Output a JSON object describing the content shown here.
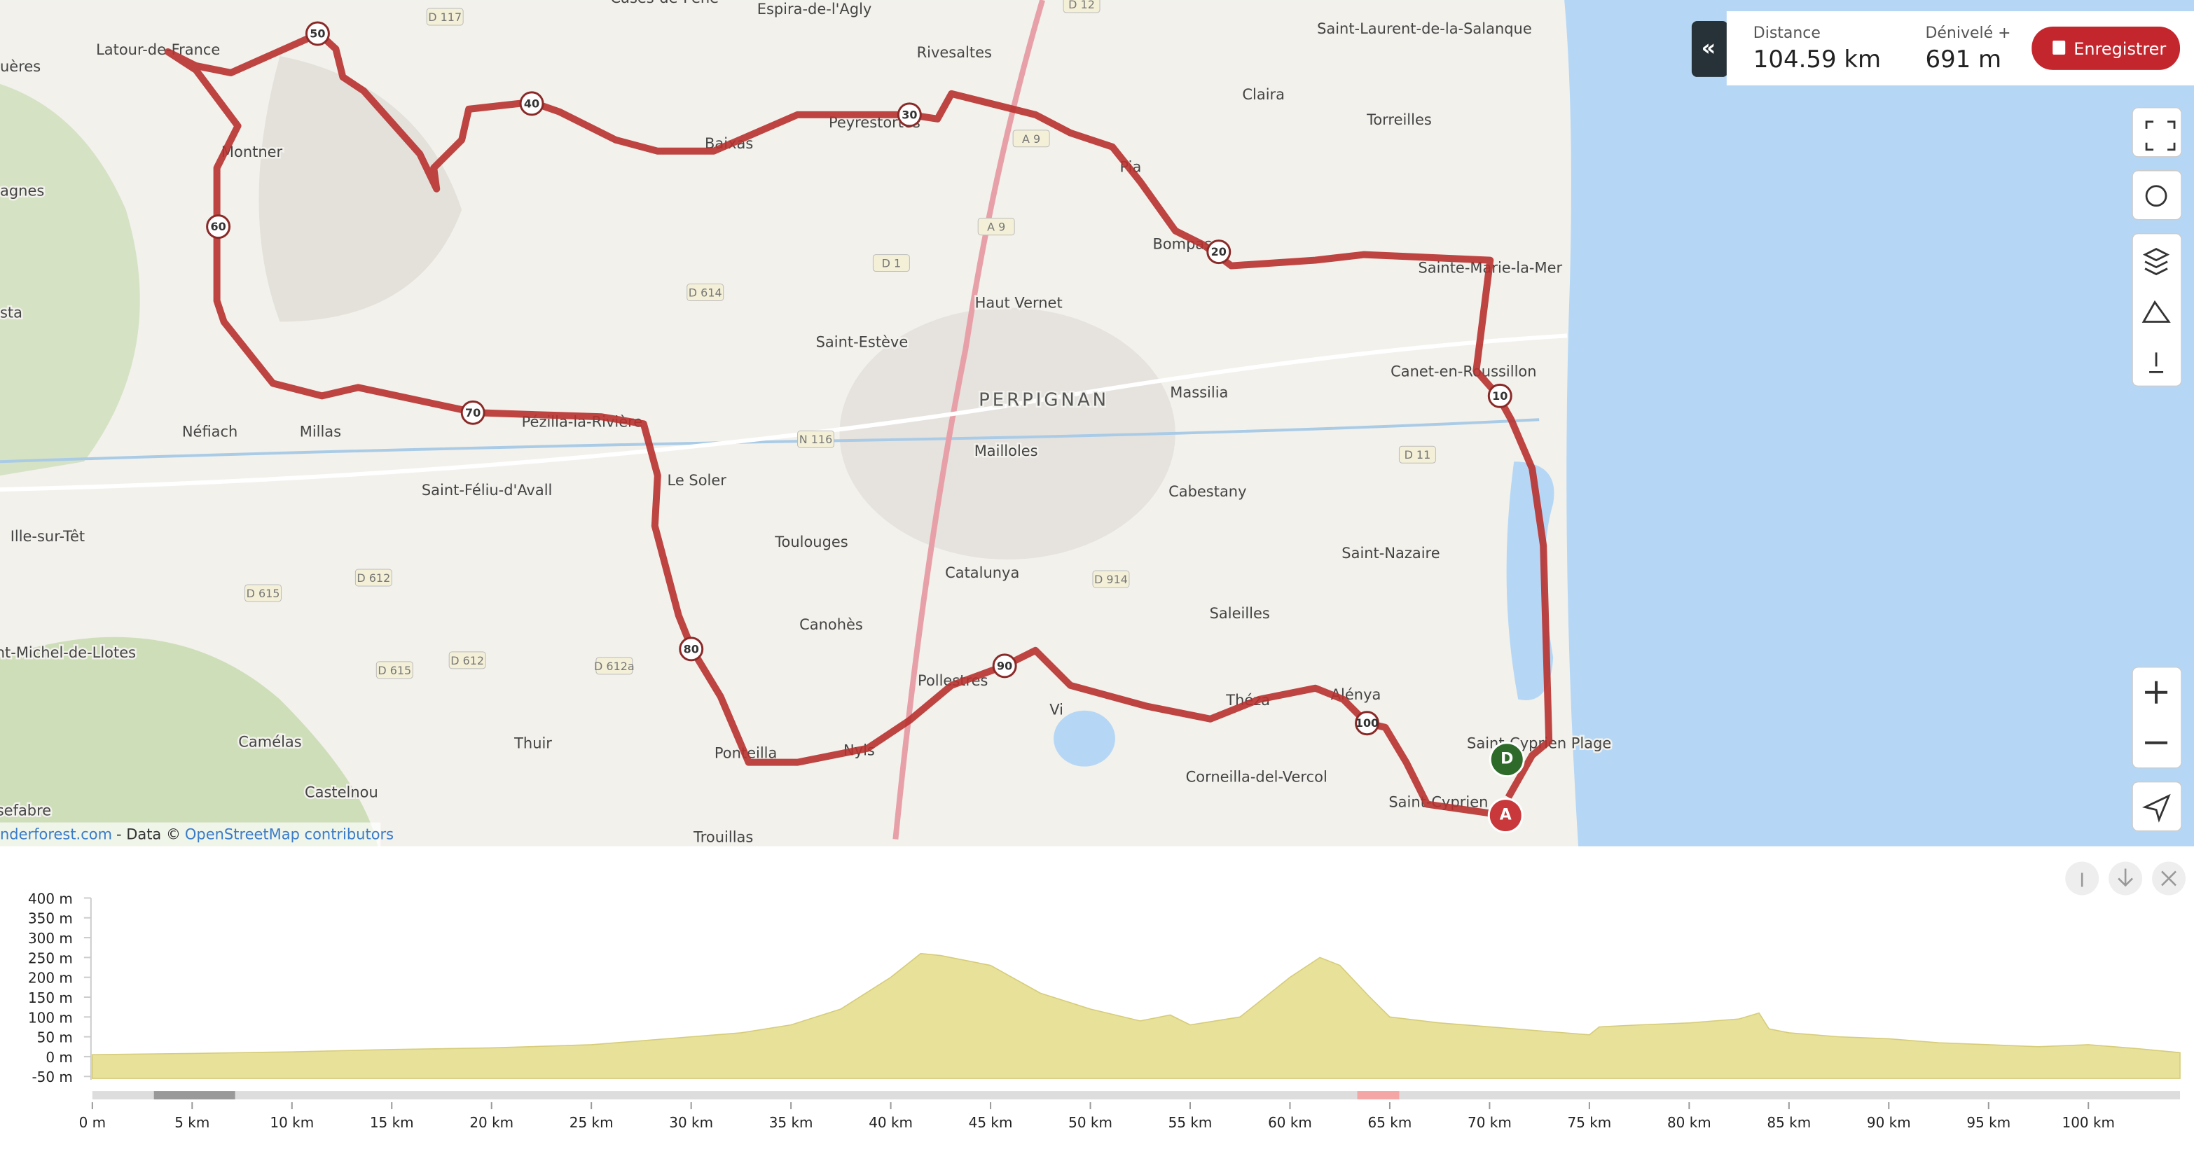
{
  "map": {
    "places": [
      "Latour-de-France",
      "uères",
      "Montner",
      "agnes",
      "sta",
      "Néfiach",
      "Millas",
      "Saint-Féliu-d'Avall",
      "Ille-sur-Têt",
      "nt-Michel-de-Llotes",
      "Camélas",
      "Castelnou",
      "sefabre",
      "Thuir",
      "Pézilla-la-Rivière",
      "Le Soler",
      "Toulouges",
      "Canohès",
      "Ponteilla",
      "Nyls",
      "Pollestres",
      "Trouillas",
      "Vi",
      "Corneilla-del-Vercol",
      "Théza",
      "Alénya",
      "Saint-Cyprien",
      "Saint-Cyprien Plage",
      "Saint-Nazaire",
      "Saleilles",
      "Cabestany",
      "Catalunya",
      "Mailloles",
      "PERPIGNAN",
      "Massilia",
      "Saint-Estève",
      "Haut Vernet",
      "Baixas",
      "Peyrestortes",
      "Rivesaltes",
      "Espira-de-l'Agly",
      "Pia",
      "Bompas",
      "Claira",
      "Torreilles",
      "Saint-Laurent-de-la-Salanque",
      "Sainte-Marie-la-Mer",
      "Canet-en-Roussillon",
      "Cases-de-Pène"
    ],
    "roads": [
      "D 117",
      "D 12",
      "A 9",
      "A 9",
      "D 1",
      "D 614",
      "N 116",
      "D 612",
      "D 612",
      "D 615",
      "D 615",
      "D 612a",
      "D 914",
      "D 11"
    ],
    "km_markers": [
      "10",
      "20",
      "30",
      "40",
      "50",
      "60",
      "70",
      "80",
      "90",
      "100"
    ],
    "start_marker": "D",
    "end_marker": "A",
    "attribution": {
      "prefix": "nderforest.com",
      "middle": "- Data ©",
      "link": "OpenStreetMap contributors"
    }
  },
  "summary": {
    "distance_label": "Distance",
    "distance": "104.59 km",
    "elevation_label": "Dénivelé +",
    "elevation": "691 m",
    "save_button": "Enregistrer",
    "collapse": "«"
  },
  "elevation_profile": {
    "type": "area",
    "color": "#e8e19a",
    "xlim": [
      0,
      104.59
    ],
    "ylim": [
      -55,
      400
    ],
    "yticks": [
      {
        "value": 400,
        "label": "400 m"
      },
      {
        "value": 350,
        "label": "350 m"
      },
      {
        "value": 300,
        "label": "300 m"
      },
      {
        "value": 250,
        "label": "250 m"
      },
      {
        "value": 200,
        "label": "200 m"
      },
      {
        "value": 150,
        "label": "150 m"
      },
      {
        "value": 100,
        "label": "100 m"
      },
      {
        "value": 50,
        "label": "50 m"
      },
      {
        "value": 0,
        "label": "0 m"
      },
      {
        "value": -50,
        "label": "-50 m"
      }
    ],
    "xticks": [
      {
        "value": 0,
        "label": "0 m"
      },
      {
        "value": 5,
        "label": "5 km"
      },
      {
        "value": 10,
        "label": "10 km"
      },
      {
        "value": 15,
        "label": "15 km"
      },
      {
        "value": 20,
        "label": "20 km"
      },
      {
        "value": 25,
        "label": "25 km"
      },
      {
        "value": 30,
        "label": "30 km"
      },
      {
        "value": 35,
        "label": "35 km"
      },
      {
        "value": 40,
        "label": "40 km"
      },
      {
        "value": 45,
        "label": "45 km"
      },
      {
        "value": 50,
        "label": "50 km"
      },
      {
        "value": 55,
        "label": "55 km"
      },
      {
        "value": 60,
        "label": "60 km"
      },
      {
        "value": 65,
        "label": "65 km"
      },
      {
        "value": 70,
        "label": "70 km"
      },
      {
        "value": 75,
        "label": "75 km"
      },
      {
        "value": 80,
        "label": "80 km"
      },
      {
        "value": 85,
        "label": "85 km"
      },
      {
        "value": 90,
        "label": "90 km"
      },
      {
        "value": 95,
        "label": "95 km"
      },
      {
        "value": 100,
        "label": "100 km"
      }
    ],
    "x": [
      0,
      5,
      10,
      15,
      20,
      25,
      30,
      32.5,
      35,
      37.5,
      40,
      41.5,
      42.5,
      45,
      47.5,
      50,
      52.5,
      54,
      55,
      57.5,
      60,
      61.5,
      62.5,
      64,
      65,
      67.5,
      70,
      72.5,
      75,
      75.5,
      77.5,
      80,
      82.5,
      83.5,
      84,
      85,
      87.5,
      90,
      92.5,
      95,
      97.5,
      100,
      102.5,
      104.59
    ],
    "values": [
      5,
      8,
      12,
      18,
      22,
      30,
      50,
      60,
      80,
      120,
      200,
      260,
      255,
      230,
      160,
      120,
      90,
      105,
      80,
      100,
      200,
      250,
      230,
      150,
      100,
      85,
      75,
      65,
      55,
      75,
      80,
      85,
      95,
      110,
      70,
      60,
      50,
      45,
      35,
      30,
      25,
      30,
      20,
      10
    ]
  }
}
